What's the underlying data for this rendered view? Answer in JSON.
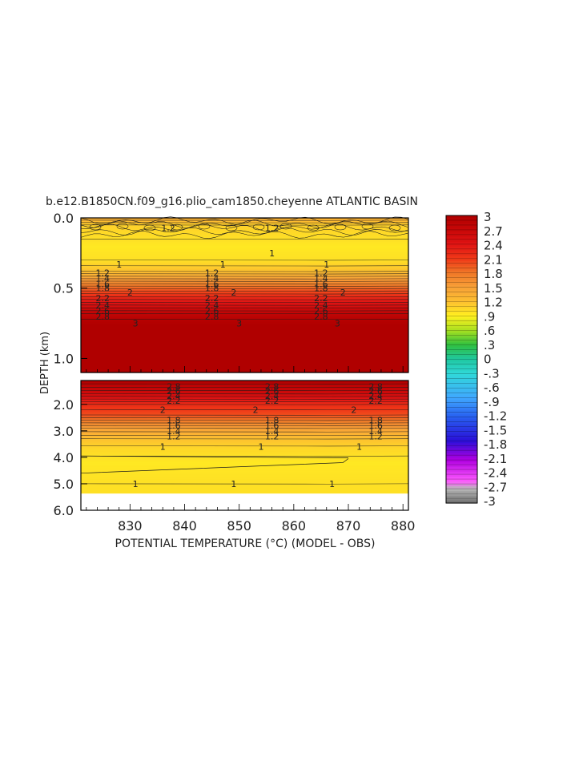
{
  "chart_data": {
    "type": "heatmap",
    "title": "b.e12.B1850CN.f09_g16.plio_cam1850.cheyenne ATLANTIC BASIN",
    "xlabel": "POTENTIAL TEMPERATURE (°C) (MODEL - OBS)",
    "ylabel": "DEPTH (km)",
    "x_ticks": [
      "830",
      "840",
      "850",
      "860",
      "870",
      "880"
    ],
    "x_tick_values": [
      830,
      840,
      850,
      860,
      870,
      880
    ],
    "xlim": [
      821,
      881
    ],
    "upper_panel": {
      "ylim": [
        0.0,
        1.1
      ],
      "y_ticks": [
        "0.0",
        "0.5",
        "1.0"
      ],
      "y_tick_values": [
        0.0,
        0.5,
        1.0
      ]
    },
    "lower_panel": {
      "ylim": [
        1.1,
        6.0
      ],
      "y_ticks": [
        "2.0",
        "3.0",
        "4.0",
        "5.0",
        "6.0"
      ],
      "y_tick_values": [
        2.0,
        3.0,
        4.0,
        5.0,
        6.0
      ]
    },
    "colorbar": {
      "min": -3,
      "max": 3,
      "tick_labels": [
        "3",
        "2.7",
        "2.4",
        "2.1",
        "1.8",
        "1.5",
        "1.2",
        ".9",
        ".6",
        ".3",
        "0",
        "-.3",
        "-.6",
        "-.9",
        "-1.2",
        "-1.5",
        "-1.8",
        "-2.1",
        "-2.4",
        "-2.7",
        "-3"
      ]
    },
    "upper_profile": [
      {
        "depth": 0.0,
        "value": 1.4
      },
      {
        "depth": 0.05,
        "value": 1.1
      },
      {
        "depth": 0.2,
        "value": 0.95
      },
      {
        "depth": 0.3,
        "value": 1.0
      },
      {
        "depth": 0.38,
        "value": 1.2
      },
      {
        "depth": 0.45,
        "value": 1.6
      },
      {
        "depth": 0.52,
        "value": 2.0
      },
      {
        "depth": 0.6,
        "value": 2.4
      },
      {
        "depth": 0.68,
        "value": 2.8
      },
      {
        "depth": 0.76,
        "value": 3.0
      },
      {
        "depth": 1.1,
        "value": 3.0
      }
    ],
    "lower_profile": [
      {
        "depth": 1.1,
        "value": 3.0
      },
      {
        "depth": 1.6,
        "value": 2.6
      },
      {
        "depth": 2.0,
        "value": 2.2
      },
      {
        "depth": 2.4,
        "value": 2.0
      },
      {
        "depth": 2.9,
        "value": 1.5
      },
      {
        "depth": 3.3,
        "value": 1.2
      },
      {
        "depth": 3.7,
        "value": 1.05
      },
      {
        "depth": 4.2,
        "value": 0.95
      },
      {
        "depth": 5.0,
        "value": 1.0
      },
      {
        "depth": 5.35,
        "value": 1.0
      }
    ],
    "data_max_depth": 5.35,
    "upper_labels": [
      {
        "x": 828,
        "depth": 0.33,
        "text": "1"
      },
      {
        "x": 847,
        "depth": 0.33,
        "text": "1"
      },
      {
        "x": 866,
        "depth": 0.33,
        "text": "1"
      },
      {
        "x": 825,
        "depth": 0.39,
        "text": "1.2"
      },
      {
        "x": 825,
        "depth": 0.43,
        "text": "1.4"
      },
      {
        "x": 825,
        "depth": 0.47,
        "text": "1.6"
      },
      {
        "x": 825,
        "depth": 0.5,
        "text": "1.8"
      },
      {
        "x": 830,
        "depth": 0.53,
        "text": "2"
      },
      {
        "x": 825,
        "depth": 0.57,
        "text": "2.2"
      },
      {
        "x": 825,
        "depth": 0.62,
        "text": "2.4"
      },
      {
        "x": 825,
        "depth": 0.66,
        "text": "2.6"
      },
      {
        "x": 825,
        "depth": 0.7,
        "text": "2.8"
      },
      {
        "x": 831,
        "depth": 0.75,
        "text": "3"
      },
      {
        "x": 845,
        "depth": 0.39,
        "text": "1.2"
      },
      {
        "x": 845,
        "depth": 0.43,
        "text": "1.4"
      },
      {
        "x": 845,
        "depth": 0.47,
        "text": "1.6"
      },
      {
        "x": 845,
        "depth": 0.5,
        "text": "1.8"
      },
      {
        "x": 849,
        "depth": 0.53,
        "text": "2"
      },
      {
        "x": 845,
        "depth": 0.57,
        "text": "2.2"
      },
      {
        "x": 845,
        "depth": 0.62,
        "text": "2.4"
      },
      {
        "x": 845,
        "depth": 0.66,
        "text": "2.6"
      },
      {
        "x": 845,
        "depth": 0.7,
        "text": "2.8"
      },
      {
        "x": 850,
        "depth": 0.75,
        "text": "3"
      },
      {
        "x": 865,
        "depth": 0.39,
        "text": "1.2"
      },
      {
        "x": 865,
        "depth": 0.43,
        "text": "1.4"
      },
      {
        "x": 865,
        "depth": 0.47,
        "text": "1.6"
      },
      {
        "x": 865,
        "depth": 0.5,
        "text": "1.8"
      },
      {
        "x": 869,
        "depth": 0.53,
        "text": "2"
      },
      {
        "x": 865,
        "depth": 0.57,
        "text": "2.2"
      },
      {
        "x": 865,
        "depth": 0.62,
        "text": "2.4"
      },
      {
        "x": 865,
        "depth": 0.66,
        "text": "2.6"
      },
      {
        "x": 865,
        "depth": 0.7,
        "text": "2.8"
      },
      {
        "x": 868,
        "depth": 0.75,
        "text": "3"
      },
      {
        "x": 837,
        "depth": 0.07,
        "text": "1.2"
      },
      {
        "x": 856,
        "depth": 0.07,
        "text": "1.2"
      },
      {
        "x": 856,
        "depth": 0.25,
        "text": "1"
      }
    ],
    "lower_labels": [
      {
        "x": 838,
        "depth": 1.32,
        "text": "2.8"
      },
      {
        "x": 838,
        "depth": 1.5,
        "text": "2.6"
      },
      {
        "x": 838,
        "depth": 1.68,
        "text": "2.4"
      },
      {
        "x": 838,
        "depth": 1.86,
        "text": "2.2"
      },
      {
        "x": 836,
        "depth": 2.2,
        "text": "2"
      },
      {
        "x": 838,
        "depth": 2.6,
        "text": "1.8"
      },
      {
        "x": 838,
        "depth": 2.8,
        "text": "1.6"
      },
      {
        "x": 838,
        "depth": 3.0,
        "text": "1.4"
      },
      {
        "x": 838,
        "depth": 3.2,
        "text": "1.2"
      },
      {
        "x": 836,
        "depth": 3.6,
        "text": "1"
      },
      {
        "x": 856,
        "depth": 1.32,
        "text": "2.8"
      },
      {
        "x": 856,
        "depth": 1.5,
        "text": "2.6"
      },
      {
        "x": 856,
        "depth": 1.68,
        "text": "2.4"
      },
      {
        "x": 856,
        "depth": 1.86,
        "text": "2.2"
      },
      {
        "x": 853,
        "depth": 2.2,
        "text": "2"
      },
      {
        "x": 856,
        "depth": 2.6,
        "text": "1.8"
      },
      {
        "x": 856,
        "depth": 2.8,
        "text": "1.6"
      },
      {
        "x": 856,
        "depth": 3.0,
        "text": "1.4"
      },
      {
        "x": 856,
        "depth": 3.2,
        "text": "1.2"
      },
      {
        "x": 854,
        "depth": 3.6,
        "text": "1"
      },
      {
        "x": 875,
        "depth": 1.32,
        "text": "2.8"
      },
      {
        "x": 875,
        "depth": 1.5,
        "text": "2.6"
      },
      {
        "x": 875,
        "depth": 1.68,
        "text": "2.4"
      },
      {
        "x": 875,
        "depth": 1.86,
        "text": "2.2"
      },
      {
        "x": 871,
        "depth": 2.2,
        "text": "2"
      },
      {
        "x": 875,
        "depth": 2.6,
        "text": "1.8"
      },
      {
        "x": 875,
        "depth": 2.8,
        "text": "1.6"
      },
      {
        "x": 875,
        "depth": 3.0,
        "text": "1.4"
      },
      {
        "x": 875,
        "depth": 3.2,
        "text": "1.2"
      },
      {
        "x": 872,
        "depth": 3.6,
        "text": "1"
      },
      {
        "x": 831,
        "depth": 5.0,
        "text": "1"
      },
      {
        "x": 849,
        "depth": 5.0,
        "text": "1"
      },
      {
        "x": 867,
        "depth": 5.0,
        "text": "1"
      }
    ]
  }
}
